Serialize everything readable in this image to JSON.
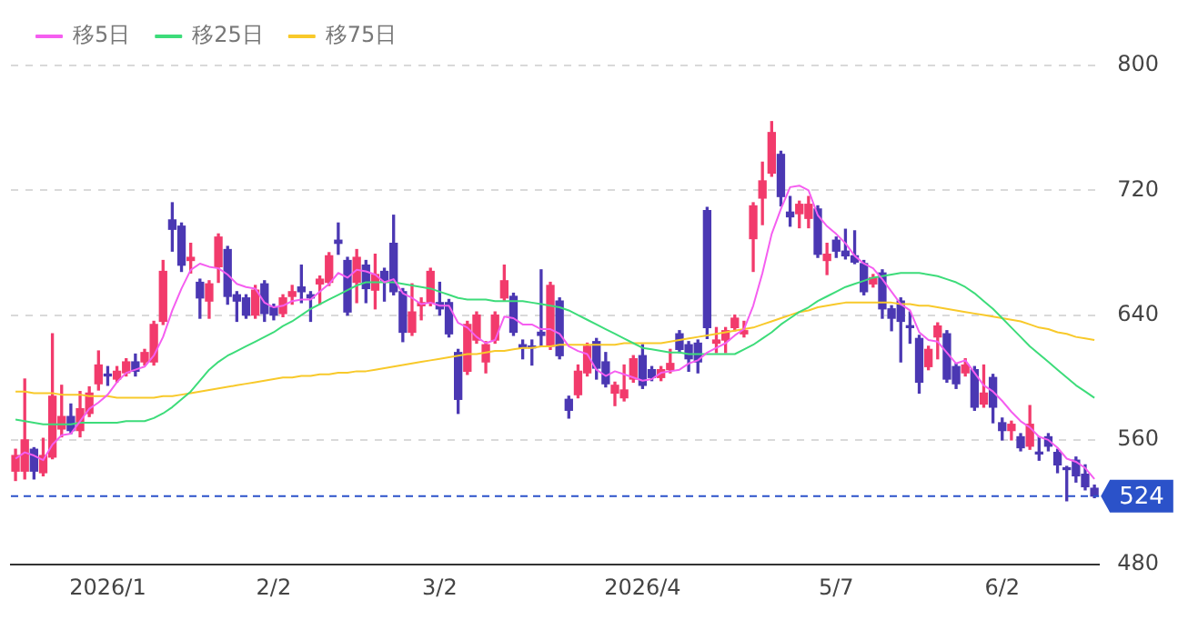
{
  "chart_data": {
    "type": "candlestick",
    "legend": "top left",
    "grid": "y",
    "marker": "none",
    "ylim": [
      480,
      800
    ],
    "yticks": [
      480,
      560,
      640,
      720,
      800
    ],
    "categories": [
      null,
      null,
      null,
      null,
      null,
      null,
      null,
      null,
      null,
      null,
      "2026/1",
      null,
      null,
      null,
      null,
      null,
      null,
      null,
      null,
      null,
      null,
      null,
      null,
      null,
      null,
      null,
      null,
      null,
      "2/2",
      null,
      null,
      null,
      null,
      null,
      null,
      null,
      null,
      null,
      null,
      null,
      null,
      null,
      null,
      null,
      null,
      null,
      "3/2",
      null,
      null,
      null,
      null,
      null,
      null,
      null,
      null,
      null,
      null,
      null,
      null,
      null,
      null,
      null,
      null,
      null,
      null,
      null,
      null,
      null,
      "2026/4",
      null,
      null,
      null,
      null,
      null,
      null,
      null,
      null,
      null,
      null,
      null,
      null,
      null,
      null,
      null,
      null,
      null,
      null,
      null,
      null,
      "5/7",
      null,
      null,
      null,
      null,
      null,
      null,
      null,
      null,
      null,
      null,
      null,
      null,
      null,
      null,
      null,
      null,
      null,
      "6/2",
      null,
      null,
      null,
      null,
      null,
      null,
      null,
      null,
      null,
      null
    ],
    "colors": [
      "#f23b6c",
      "#f23b6c",
      "#4b38b3",
      "#f23b6c",
      "#f23b6c",
      "#f23b6c",
      "#4b38b3",
      "#f23b6c",
      "#f23b6c",
      "#f23b6c",
      "#4b38b3",
      "#f23b6c",
      "#f23b6c",
      "#4b38b3",
      "#f23b6c",
      "#f23b6c",
      "#f23b6c",
      "#4b38b3",
      "#4b38b3",
      "#f23b6c",
      "#4b38b3",
      "#f23b6c",
      "#f23b6c",
      "#4b38b3",
      "#4b38b3",
      "#4b38b3",
      "#f23b6c",
      "#4b38b3",
      "#4b38b3",
      "#f23b6c",
      "#f23b6c",
      "#4b38b3",
      "#4b38b3",
      "#f23b6c",
      "#f23b6c",
      "#4b38b3",
      "#4b38b3",
      "#f23b6c",
      "#4b38b3",
      "#f23b6c",
      "#4b38b3",
      "#4b38b3",
      "#4b38b3",
      "#f23b6c",
      "#f23b6c",
      "#f23b6c",
      "#4b38b3",
      "#4b38b3",
      "#4b38b3",
      "#f23b6c",
      "#f23b6c",
      "#f23b6c",
      "#f23b6c",
      "#f23b6c",
      "#4b38b3",
      "#4b38b3",
      "#4b38b3",
      "#4b38b3",
      "#f23b6c",
      "#4b38b3",
      "#4b38b3",
      "#f23b6c",
      "#f23b6c",
      "#4b38b3",
      "#4b38b3",
      "#f23b6c",
      "#f23b6c",
      "#f23b6c",
      "#4b38b3",
      "#4b38b3",
      "#f23b6c",
      "#f23b6c",
      "#4b38b3",
      "#4b38b3",
      "#4b38b3",
      "#4b38b3",
      "#f23b6c",
      "#f23b6c",
      "#f23b6c",
      "#f23b6c",
      "#f23b6c",
      "#f23b6c",
      "#f23b6c",
      "#4b38b3",
      "#4b38b3",
      "#f23b6c",
      "#f23b6c",
      "#4b38b3",
      "#f23b6c",
      "#4b38b3",
      "#4b38b3",
      "#4b38b3",
      "#4b38b3",
      "#f23b6c",
      "#4b38b3",
      "#4b38b3",
      "#4b38b3",
      "#4b38b3",
      "#4b38b3",
      "#f23b6c",
      "#f23b6c",
      "#4b38b3",
      "#4b38b3",
      "#f23b6c",
      "#4b38b3",
      "#f23b6c",
      "#4b38b3",
      "#4b38b3",
      "#f23b6c",
      "#4b38b3",
      "#f23b6c",
      "#4b38b3",
      "#4b38b3",
      "#4b38b3",
      "#4b38b3",
      "#4b38b3",
      "#4b38b3",
      "#4b38b3"
    ],
    "ohlc": [
      [
        540,
        554,
        534,
        550
      ],
      [
        540,
        599,
        535,
        560
      ],
      [
        554,
        555,
        535,
        540
      ],
      [
        539,
        561,
        537,
        550
      ],
      [
        549,
        628,
        548,
        588
      ],
      [
        567,
        595,
        562,
        575
      ],
      [
        575,
        583,
        564,
        566
      ],
      [
        566,
        591,
        562,
        580
      ],
      [
        577,
        594,
        575,
        590
      ],
      [
        596,
        617,
        592,
        608
      ],
      [
        602,
        607,
        595,
        601
      ],
      [
        599,
        607,
        597,
        604
      ],
      [
        603,
        612,
        601,
        610
      ],
      [
        610,
        615,
        601,
        604
      ],
      [
        610,
        618,
        608,
        616
      ],
      [
        610,
        636,
        608,
        634
      ],
      [
        636,
        675,
        634,
        668
      ],
      [
        701,
        712,
        681,
        695
      ],
      [
        697,
        699,
        668,
        672
      ],
      [
        675,
        686,
        667,
        677
      ],
      [
        661,
        663,
        638,
        651
      ],
      [
        649,
        662,
        638,
        660
      ],
      [
        671,
        692,
        661,
        690
      ],
      [
        682,
        684,
        647,
        652
      ],
      [
        653,
        655,
        636,
        649
      ],
      [
        651,
        653,
        638,
        640
      ],
      [
        640,
        659,
        638,
        656
      ],
      [
        660,
        662,
        636,
        641
      ],
      [
        645,
        647,
        637,
        640
      ],
      [
        641,
        653,
        639,
        651
      ],
      [
        652,
        659,
        647,
        655
      ],
      [
        658,
        672,
        648,
        655
      ],
      [
        653,
        655,
        636,
        651
      ],
      [
        660,
        665,
        647,
        663
      ],
      [
        661,
        680,
        659,
        678
      ],
      [
        688,
        699,
        679,
        686
      ],
      [
        675,
        677,
        640,
        642
      ],
      [
        661,
        682,
        648,
        677
      ],
      [
        672,
        675,
        648,
        657
      ],
      [
        656,
        679,
        644,
        666
      ],
      [
        668,
        670,
        649,
        662
      ],
      [
        686,
        704,
        653,
        655
      ],
      [
        655,
        657,
        623,
        629
      ],
      [
        629,
        660,
        627,
        642
      ],
      [
        646,
        651,
        637,
        648
      ],
      [
        648,
        670,
        646,
        668
      ],
      [
        648,
        661,
        640,
        644
      ],
      [
        648,
        650,
        626,
        628
      ],
      [
        616,
        618,
        577,
        586
      ],
      [
        604,
        636,
        602,
        634
      ],
      [
        624,
        642,
        622,
        640
      ],
      [
        610,
        623,
        603,
        621
      ],
      [
        624,
        642,
        622,
        640
      ],
      [
        651,
        672,
        649,
        662
      ],
      [
        652,
        654,
        627,
        629
      ],
      [
        621,
        624,
        612,
        619
      ],
      [
        620,
        624,
        608,
        619
      ],
      [
        629,
        669,
        620,
        627
      ],
      [
        620,
        661,
        618,
        659
      ],
      [
        649,
        651,
        612,
        614
      ],
      [
        586,
        588,
        574,
        579
      ],
      [
        589,
        608,
        587,
        604
      ],
      [
        603,
        622,
        601,
        620
      ],
      [
        623,
        625,
        599,
        606
      ],
      [
        610,
        616,
        594,
        596
      ],
      [
        590,
        597,
        582,
        595
      ],
      [
        587,
        608,
        585,
        592
      ],
      [
        599,
        614,
        597,
        612
      ],
      [
        614,
        621,
        593,
        595
      ],
      [
        605,
        607,
        598,
        600
      ],
      [
        600,
        607,
        598,
        605
      ],
      [
        605,
        618,
        603,
        609
      ],
      [
        628,
        630,
        616,
        618
      ],
      [
        621,
        623,
        604,
        612
      ],
      [
        622,
        624,
        603,
        610
      ],
      [
        707,
        709,
        625,
        632
      ],
      [
        622,
        632,
        616,
        624
      ],
      [
        624,
        632,
        616,
        630
      ],
      [
        632,
        640,
        630,
        638
      ],
      [
        628,
        636,
        626,
        630
      ],
      [
        689,
        712,
        668,
        710
      ],
      [
        715,
        738,
        698,
        726
      ],
      [
        731,
        764,
        729,
        757
      ],
      [
        743,
        745,
        710,
        716
      ],
      [
        706,
        716,
        697,
        703
      ],
      [
        705,
        713,
        696,
        711
      ],
      [
        702,
        716,
        696,
        711
      ],
      [
        708,
        710,
        677,
        679
      ],
      [
        675,
        686,
        666,
        679
      ],
      [
        688,
        690,
        677,
        681
      ],
      [
        681,
        695,
        676,
        678
      ],
      [
        678,
        694,
        673,
        674
      ],
      [
        673,
        675,
        653,
        655
      ],
      [
        660,
        666,
        658,
        664
      ],
      [
        667,
        669,
        638,
        644
      ],
      [
        644,
        646,
        630,
        638
      ],
      [
        649,
        651,
        610,
        636
      ],
      [
        633,
        642,
        622,
        632
      ],
      [
        625,
        627,
        590,
        597
      ],
      [
        607,
        620,
        605,
        618
      ],
      [
        626,
        635,
        612,
        633
      ],
      [
        628,
        630,
        597,
        599
      ],
      [
        607,
        609,
        593,
        596
      ],
      [
        603,
        612,
        601,
        608
      ],
      [
        605,
        607,
        579,
        581
      ],
      [
        583,
        608,
        581,
        590
      ],
      [
        600,
        602,
        571,
        581
      ],
      [
        571,
        574,
        560,
        566
      ],
      [
        566,
        572,
        560,
        570
      ],
      [
        562,
        564,
        553,
        555
      ],
      [
        556,
        582,
        554,
        570
      ],
      [
        552,
        562,
        547,
        551
      ],
      [
        562,
        564,
        553,
        556
      ],
      [
        552,
        554,
        539,
        544
      ],
      [
        542,
        543,
        521,
        541
      ],
      [
        547,
        549,
        533,
        537
      ],
      [
        538,
        544,
        528,
        530
      ],
      [
        529,
        531,
        523,
        524
      ]
    ],
    "series": [
      {
        "name": "移5日",
        "type": "line",
        "color": "#f55ef0",
        "values": [
          548,
          552,
          550,
          547,
          557,
          563,
          564,
          572,
          580,
          584,
          589,
          597,
          603,
          605,
          607,
          614,
          626,
          643,
          657,
          669,
          673,
          671,
          670,
          666,
          660,
          658,
          657,
          648,
          645,
          646,
          649,
          650,
          650,
          655,
          660,
          667,
          664,
          669,
          668,
          666,
          661,
          663,
          654,
          651,
          647,
          648,
          646,
          646,
          635,
          632,
          626,
          622,
          624,
          639,
          638,
          634,
          634,
          631,
          631,
          628,
          620,
          617,
          615,
          605,
          601,
          604,
          602,
          600,
          598,
          599,
          603,
          604,
          605,
          609,
          611,
          616,
          619,
          622,
          627,
          631,
          646,
          667,
          692,
          708,
          722,
          723,
          720,
          704,
          697,
          692,
          686,
          678,
          673,
          670,
          663,
          655,
          647,
          643,
          629,
          624,
          623,
          616,
          609,
          611,
          603,
          595,
          591,
          585,
          578,
          572,
          568,
          562,
          560,
          555,
          548,
          546,
          542,
          535
        ]
      },
      {
        "name": "移25日",
        "type": "line",
        "color": "#3ddc7a",
        "values": [
          573,
          572,
          571,
          570,
          570,
          570,
          570,
          571,
          571,
          571,
          571,
          571,
          572,
          572,
          572,
          574,
          577,
          581,
          586,
          591,
          598,
          605,
          610,
          614,
          617,
          620,
          623,
          626,
          629,
          633,
          636,
          640,
          644,
          647,
          650,
          653,
          656,
          659,
          661,
          661,
          661,
          661,
          660,
          659,
          658,
          657,
          655,
          653,
          651,
          650,
          650,
          650,
          649,
          649,
          649,
          649,
          648,
          647,
          646,
          645,
          643,
          640,
          637,
          634,
          631,
          628,
          625,
          622,
          619,
          618,
          617,
          616,
          616,
          615,
          615,
          615,
          615,
          615,
          615,
          618,
          621,
          625,
          629,
          634,
          638,
          642,
          645,
          649,
          652,
          655,
          658,
          660,
          662,
          664,
          665,
          666,
          667,
          667,
          667,
          666,
          665,
          663,
          661,
          658,
          654,
          649,
          644,
          638,
          632,
          626,
          620,
          615,
          610,
          605,
          600,
          595,
          591,
          587
        ]
      },
      {
        "name": "移75日",
        "type": "line",
        "color": "#f8c92a",
        "values": [
          591,
          591,
          590,
          590,
          590,
          589,
          589,
          589,
          588,
          588,
          588,
          587,
          587,
          587,
          587,
          587,
          588,
          588,
          589,
          590,
          591,
          592,
          593,
          594,
          595,
          596,
          597,
          598,
          599,
          600,
          600,
          601,
          601,
          602,
          602,
          603,
          603,
          604,
          604,
          605,
          606,
          607,
          608,
          609,
          610,
          611,
          612,
          613,
          614,
          615,
          615,
          616,
          617,
          617,
          618,
          619,
          619,
          620,
          620,
          621,
          621,
          621,
          621,
          621,
          621,
          621,
          622,
          622,
          622,
          622,
          622,
          623,
          624,
          625,
          626,
          627,
          628,
          629,
          630,
          631,
          632,
          634,
          636,
          638,
          640,
          642,
          643,
          645,
          646,
          647,
          648,
          648,
          648,
          648,
          648,
          648,
          647,
          647,
          646,
          646,
          645,
          644,
          643,
          642,
          641,
          640,
          639,
          638,
          637,
          636,
          634,
          632,
          631,
          629,
          628,
          626,
          625,
          624
        ]
      }
    ],
    "ref_lines": [
      {
        "axis": "y",
        "value": 524,
        "label": "524",
        "color": "#2b52c9",
        "line_style": "dashed"
      }
    ]
  }
}
